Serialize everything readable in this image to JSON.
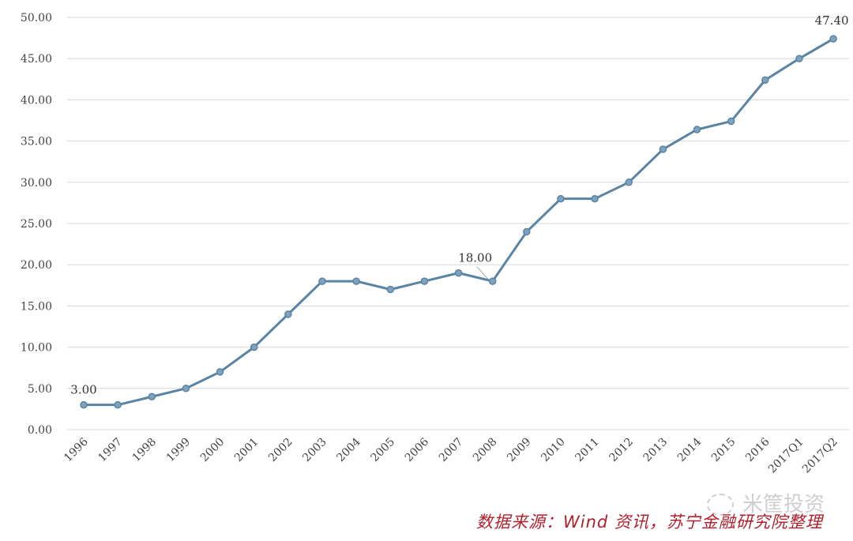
{
  "chart_data": {
    "type": "line",
    "title": "",
    "xlabel": "",
    "ylabel": "",
    "ylim": [
      0,
      50
    ],
    "yticks": [
      "0.00",
      "5.00",
      "10.00",
      "15.00",
      "20.00",
      "25.00",
      "30.00",
      "35.00",
      "40.00",
      "45.00",
      "50.00"
    ],
    "grid": true,
    "categories": [
      "1996",
      "1997",
      "1998",
      "1999",
      "2000",
      "2001",
      "2002",
      "2003",
      "2004",
      "2005",
      "2006",
      "2007",
      "2008",
      "2009",
      "2010",
      "2011",
      "2012",
      "2013",
      "2014",
      "2015",
      "2016",
      "2017Q1",
      "2017Q2"
    ],
    "series": [
      {
        "name": "",
        "color": "#5a84a3",
        "values": [
          3,
          3,
          4,
          5,
          7,
          10,
          14,
          18,
          18,
          17,
          18,
          19,
          18,
          24,
          28,
          28,
          30,
          34,
          36.4,
          37.4,
          42.4,
          45,
          47.4
        ]
      }
    ],
    "annotations": [
      {
        "category": "1996",
        "text": "3.00"
      },
      {
        "category": "2008",
        "text": "18.00"
      },
      {
        "category": "2017Q2",
        "text": "47.40"
      }
    ]
  },
  "source_note": "数据来源：Wind 资讯，苏宁金融研究院整理",
  "watermark": "米筐投资"
}
